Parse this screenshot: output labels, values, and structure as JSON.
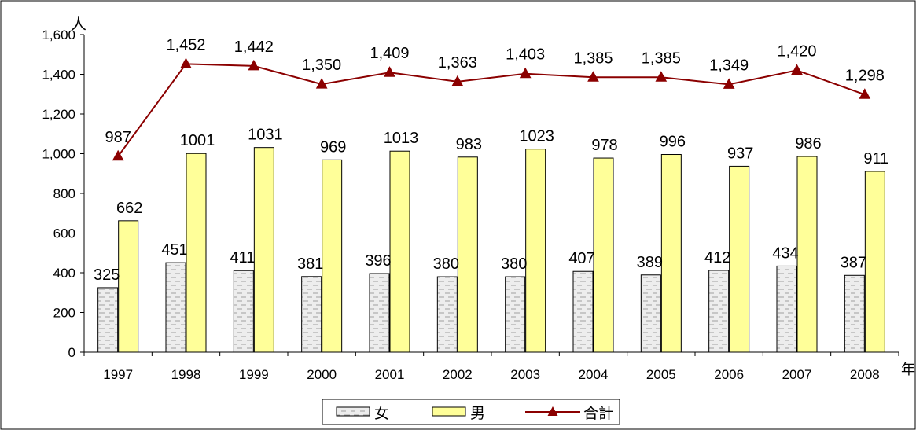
{
  "chart_data": {
    "type": "bar",
    "categories": [
      "1997",
      "1998",
      "1999",
      "2000",
      "2001",
      "2002",
      "2003",
      "2004",
      "2005",
      "2006",
      "2007",
      "2008"
    ],
    "ylim": [
      0,
      1600
    ],
    "yticks": [
      0,
      200,
      400,
      600,
      800,
      1000,
      1200,
      1400,
      1600
    ],
    "ytick_labels": [
      "0",
      "200",
      "400",
      "600",
      "800",
      "1,000",
      "1,200",
      "1,400",
      "1,600"
    ],
    "ylabel": "人",
    "xlabel": "年",
    "grid": false,
    "legend_position": "bottom",
    "series": [
      {
        "name": "女",
        "kind": "bar",
        "values": [
          325,
          451,
          411,
          381,
          396,
          380,
          380,
          407,
          389,
          412,
          434,
          387
        ],
        "labels": [
          "325",
          "451",
          "411",
          "381",
          "396",
          "380",
          "380",
          "407",
          "389",
          "412",
          "434",
          "387"
        ],
        "color": "#e8e8e8",
        "pattern": "dashes"
      },
      {
        "name": "男",
        "kind": "bar",
        "values": [
          662,
          1001,
          1031,
          969,
          1013,
          983,
          1023,
          978,
          996,
          937,
          986,
          911
        ],
        "labels": [
          "662",
          "1001",
          "1031",
          "969",
          "1013",
          "983",
          "1023",
          "978",
          "996",
          "937",
          "986",
          "911"
        ],
        "color": "#ffff99"
      },
      {
        "name": "合計",
        "kind": "line",
        "marker": "triangle",
        "values": [
          987,
          1452,
          1442,
          1350,
          1409,
          1363,
          1403,
          1385,
          1385,
          1349,
          1420,
          1298
        ],
        "labels": [
          "987",
          "1,452",
          "1,442",
          "1,350",
          "1,409",
          "1,363",
          "1,403",
          "1,385",
          "1,385",
          "1,349",
          "1,420",
          "1,298"
        ],
        "color": "#8b0000"
      }
    ]
  }
}
